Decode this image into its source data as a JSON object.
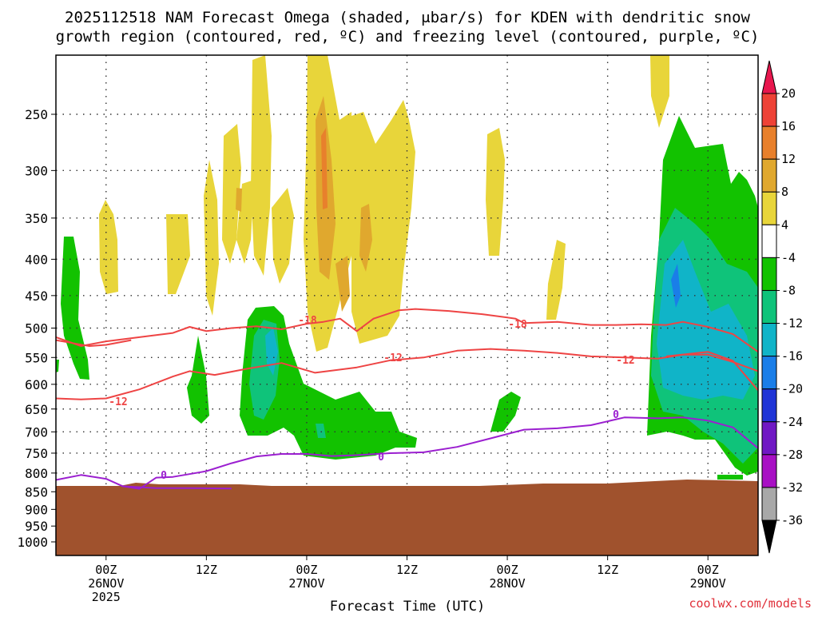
{
  "chart_data": {
    "type": "contour-fill",
    "title_line1": "2025112518 NAM Forecast Omega (shaded, μbar/s) for KDEN with dendritic snow",
    "title_line2": "growth region (contoured, red, ºC) and freezing level (contoured, purple, ºC)",
    "xlabel": "Forecast Time (UTC)",
    "credit": "coolwx.com/models",
    "y_ticks": [
      "250",
      "300",
      "350",
      "400",
      "450",
      "500",
      "550",
      "600",
      "650",
      "700",
      "750",
      "800",
      "850",
      "900",
      "950",
      "1000"
    ],
    "x_ticks": [
      {
        "hour": "00Z",
        "date": "26NOV",
        "year": "2025",
        "h": 0
      },
      {
        "hour": "12Z",
        "date": "",
        "year": "",
        "h": 12
      },
      {
        "hour": "00Z",
        "date": "27NOV",
        "year": "",
        "h": 24
      },
      {
        "hour": "12Z",
        "date": "",
        "year": "",
        "h": 36
      },
      {
        "hour": "00Z",
        "date": "28NOV",
        "year": "",
        "h": 48
      },
      {
        "hour": "12Z",
        "date": "",
        "year": "",
        "h": 60
      },
      {
        "hour": "00Z",
        "date": "29NOV",
        "year": "",
        "h": 72
      }
    ],
    "x_range_hours": [
      -6,
      78
    ],
    "pressure_range_hpa": [
      1000,
      200
    ],
    "grid": true,
    "colorbar": {
      "levels": [
        "20",
        "16",
        "12",
        "8",
        "4",
        "-4",
        "-8",
        "-12",
        "-16",
        "-20",
        "-24",
        "-28",
        "-32",
        "-36"
      ],
      "colors": [
        "#e8174e",
        "#ee4236",
        "#e8802c",
        "#e0a82e",
        "#e8d53a",
        "#ffffff",
        "#12c200",
        "#0fc37a",
        "#10b4c8",
        "#1a7ee8",
        "#1f34d6",
        "#7018c4",
        "#a810c4",
        "#a8a8a8",
        "#000000"
      ]
    },
    "contour_labels": {
      "dgz_minus18": "-18",
      "dgz_minus12": "-12",
      "freezing": "0"
    },
    "series": [
      {
        "name": "-18",
        "color": "#ee4444",
        "points": [
          [
            -6,
            515
          ],
          [
            -3,
            530
          ],
          [
            0,
            522
          ],
          [
            4,
            515
          ],
          [
            8,
            508
          ],
          [
            10,
            498
          ],
          [
            12,
            505
          ],
          [
            15,
            500
          ],
          [
            18,
            497
          ],
          [
            21,
            502
          ],
          [
            24,
            493
          ],
          [
            26,
            490
          ],
          [
            28,
            485
          ],
          [
            30,
            505
          ],
          [
            32,
            485
          ],
          [
            35,
            472
          ],
          [
            37,
            470
          ],
          [
            41,
            473
          ],
          [
            45,
            478
          ],
          [
            49,
            485
          ],
          [
            50,
            492
          ],
          [
            54,
            490
          ],
          [
            58,
            495
          ],
          [
            61,
            495
          ],
          [
            64,
            494
          ],
          [
            67,
            495
          ],
          [
            69,
            490
          ],
          [
            72,
            498
          ],
          [
            75,
            510
          ],
          [
            78,
            540
          ]
        ]
      },
      {
        "name": "-18b",
        "color": "#ee4444",
        "points": [
          [
            -6,
            520
          ],
          [
            -4,
            525
          ],
          [
            -2,
            530
          ],
          [
            0,
            528
          ],
          [
            3,
            520
          ]
        ]
      },
      {
        "name": "-12",
        "color": "#ee4444",
        "points": [
          [
            -6,
            628
          ],
          [
            -3,
            630
          ],
          [
            0,
            628
          ],
          [
            4,
            610
          ],
          [
            8,
            585
          ],
          [
            10,
            575
          ],
          [
            13,
            582
          ],
          [
            17,
            570
          ],
          [
            21,
            560
          ],
          [
            25,
            578
          ],
          [
            30,
            568
          ],
          [
            34,
            555
          ],
          [
            38,
            550
          ],
          [
            42,
            538
          ],
          [
            46,
            535
          ],
          [
            50,
            538
          ],
          [
            54,
            542
          ],
          [
            58,
            548
          ],
          [
            62,
            550
          ],
          [
            66,
            552
          ],
          [
            69,
            545
          ],
          [
            72,
            545
          ],
          [
            75,
            558
          ],
          [
            78,
            575
          ]
        ]
      },
      {
        "name": "-12b",
        "color": "#ee4444",
        "points": [
          [
            67,
            548
          ],
          [
            72,
            540
          ],
          [
            75,
            556
          ],
          [
            78,
            612
          ]
        ]
      },
      {
        "name": "0",
        "color": "#9b1fd0",
        "points": [
          [
            -6,
            818
          ],
          [
            -3,
            805
          ],
          [
            0,
            815
          ],
          [
            2,
            835
          ],
          [
            4,
            842
          ],
          [
            6,
            812
          ],
          [
            8,
            810
          ],
          [
            12,
            795
          ],
          [
            15,
            775
          ],
          [
            18,
            758
          ],
          [
            21,
            752
          ],
          [
            24,
            752
          ],
          [
            27,
            757
          ],
          [
            30,
            755
          ],
          [
            34,
            750
          ],
          [
            38,
            748
          ],
          [
            42,
            735
          ],
          [
            46,
            715
          ],
          [
            50,
            695
          ],
          [
            54,
            692
          ],
          [
            58,
            685
          ],
          [
            62,
            668
          ],
          [
            66,
            670
          ],
          [
            69,
            668
          ],
          [
            72,
            675
          ],
          [
            75,
            690
          ],
          [
            78,
            738
          ]
        ]
      },
      {
        "name": "0b",
        "color": "#9b1fd0",
        "points": [
          [
            2,
            835
          ],
          [
            6,
            840
          ],
          [
            10,
            840
          ],
          [
            15,
            841
          ]
        ]
      }
    ]
  }
}
